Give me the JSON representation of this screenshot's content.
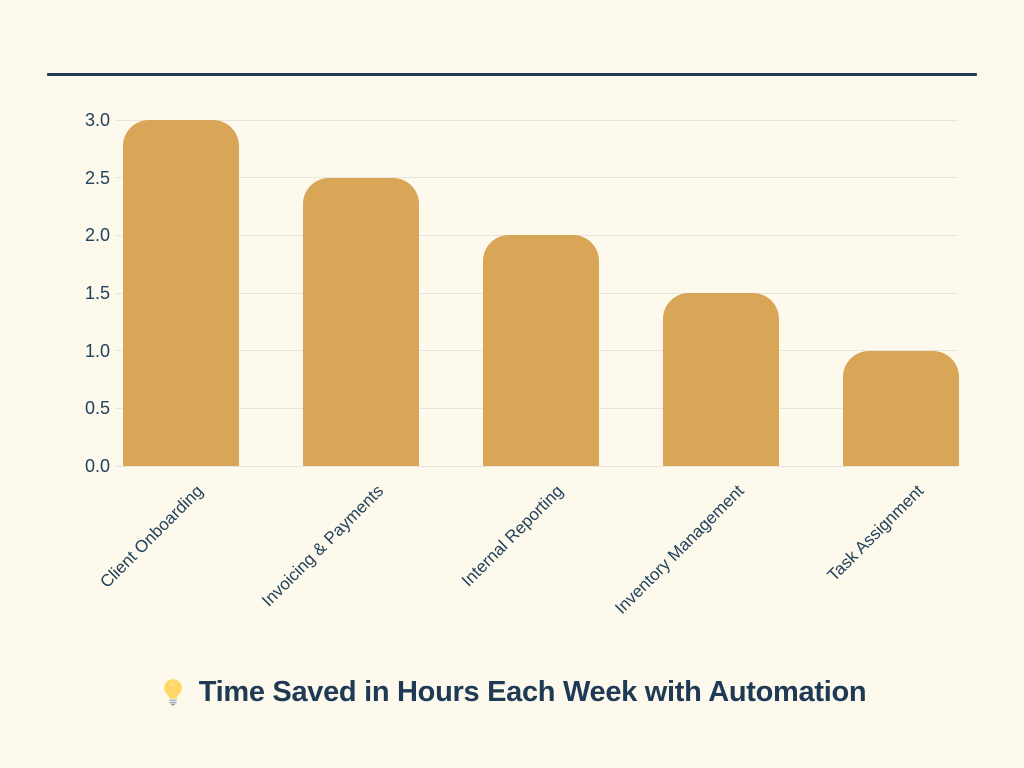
{
  "page": {
    "background_color": "#FDF9ED"
  },
  "decorations": {
    "top_rule_color": "#1F3C55"
  },
  "title": {
    "icon": "lightbulb-emoji",
    "text": "Time Saved in Hours Each Week with Automation",
    "color": "#1E3A54"
  },
  "chart_data": {
    "type": "bar",
    "categories": [
      "Client Onboarding",
      "Invoicing & Payments",
      "Internal Reporting",
      "Inventory Management",
      "Task Assignment"
    ],
    "values": [
      3.0,
      2.5,
      2.0,
      1.5,
      1.0
    ],
    "title": "💡 Time Saved in Hours Each Week with Automation",
    "xlabel": "",
    "ylabel": "",
    "ylim": [
      0,
      3.0
    ],
    "yticks": [
      0.0,
      0.5,
      1.0,
      1.5,
      2.0,
      2.5,
      3.0
    ],
    "ytick_labels": [
      "0.0",
      "0.5",
      "1.0",
      "1.5",
      "2.0",
      "2.5",
      "3.0"
    ],
    "grid": true,
    "legend": "none",
    "bar_color": "#D9A556",
    "axis_text_color": "#23425C",
    "gridline_color": "#E7E4DB"
  }
}
